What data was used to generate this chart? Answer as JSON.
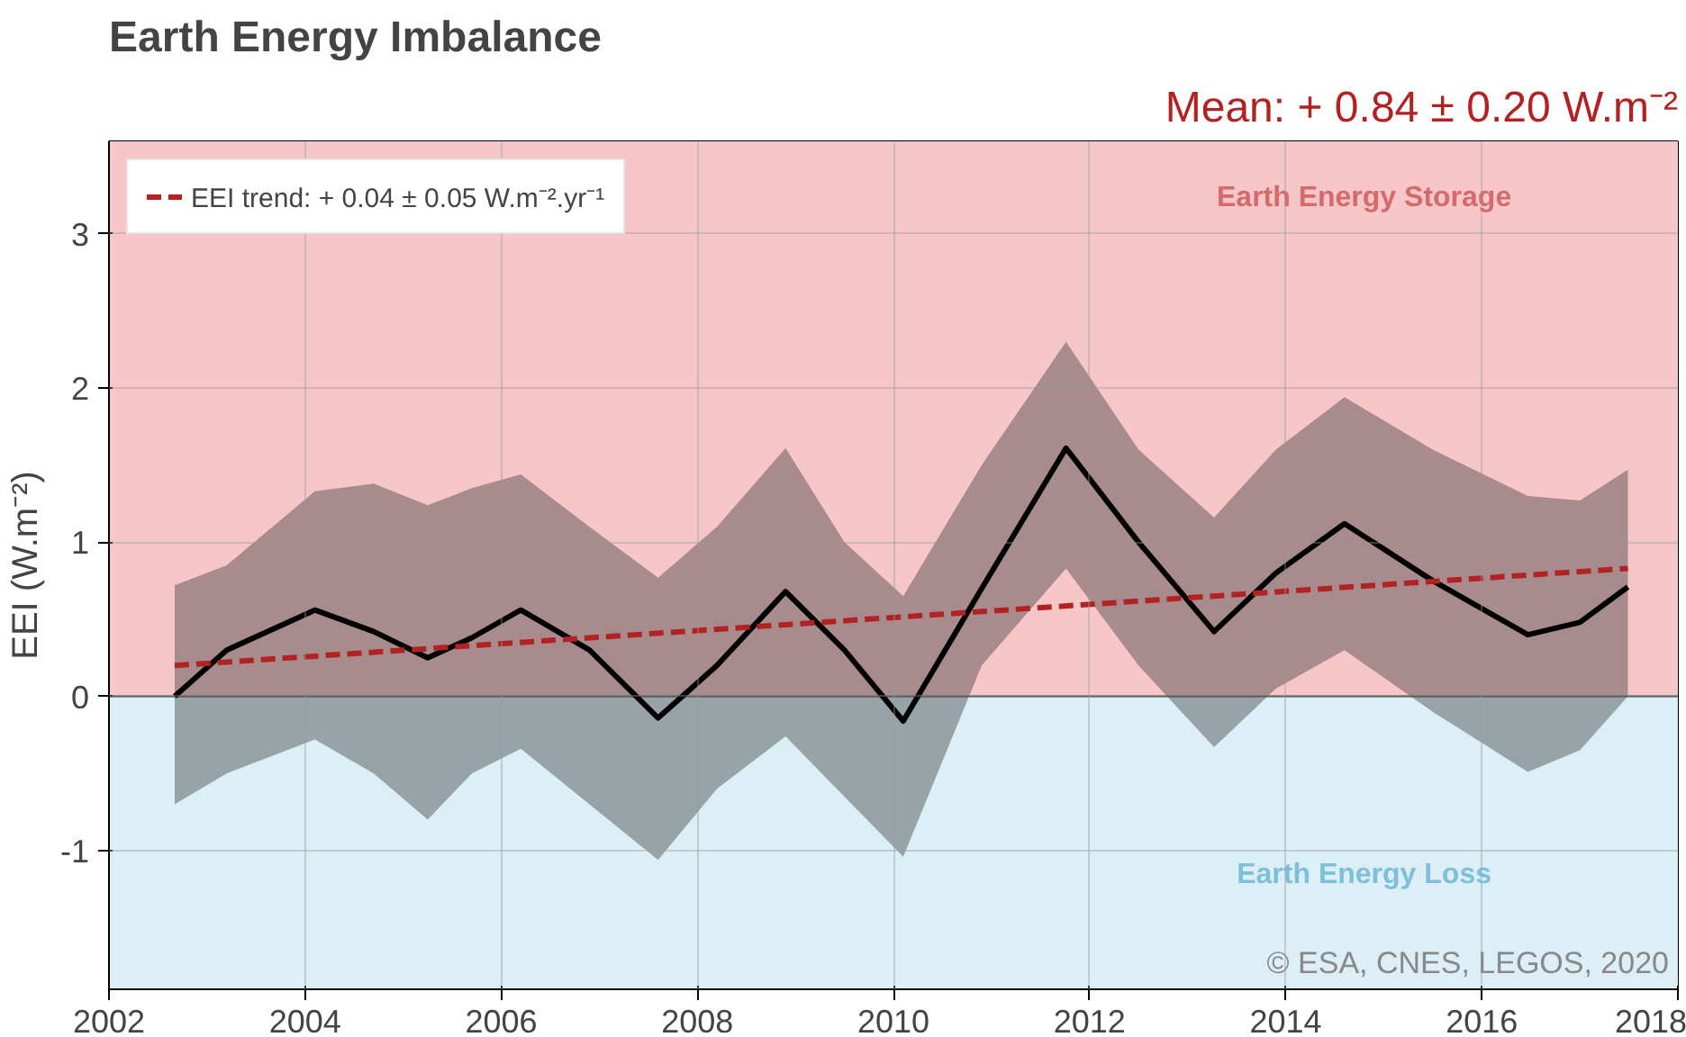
{
  "chart_data": {
    "type": "line",
    "title": "Earth Energy Imbalance",
    "subtitle": "Mean: + 0.84 ± 0.20 W.m⁻²",
    "ylabel": "EEI (W.m⁻²)",
    "xlim": [
      2002,
      2018
    ],
    "xticks": [
      2002,
      2004,
      2006,
      2008,
      2010,
      2012,
      2014,
      2016,
      2018
    ],
    "ylim": [
      -1.9,
      3.6
    ],
    "yticks": [
      -1,
      0,
      1,
      2,
      3
    ],
    "grid": true,
    "legend": "top left",
    "series": [
      {
        "color": "#000000",
        "x": [
          2002.67,
          2003.2,
          2004.1,
          2004.7,
          2005.25,
          2005.7,
          2006.2,
          2006.9,
          2007.6,
          2008.2,
          2008.9,
          2009.5,
          2010.1,
          2010.9,
          2011.76,
          2012.5,
          2013.27,
          2013.9,
          2014.6,
          2015.5,
          2016.47,
          2017.0,
          2017.49
        ],
        "values": [
          0.0,
          0.3,
          0.56,
          0.42,
          0.25,
          0.38,
          0.56,
          0.3,
          -0.14,
          0.2,
          0.68,
          0.3,
          -0.16,
          0.7,
          1.61,
          1.0,
          0.42,
          0.8,
          1.12,
          0.75,
          0.4,
          0.48,
          0.71
        ],
        "lower": [
          -0.7,
          -0.5,
          -0.28,
          -0.5,
          -0.8,
          -0.5,
          -0.34,
          -0.7,
          -1.06,
          -0.6,
          -0.26,
          -0.65,
          -1.04,
          0.2,
          0.83,
          0.2,
          -0.33,
          0.05,
          0.3,
          -0.1,
          -0.49,
          -0.35,
          0.0
        ],
        "upper": [
          0.72,
          0.85,
          1.33,
          1.38,
          1.24,
          1.35,
          1.44,
          1.1,
          0.77,
          1.1,
          1.61,
          1.0,
          0.65,
          1.5,
          2.3,
          1.6,
          1.16,
          1.6,
          1.94,
          1.6,
          1.3,
          1.27,
          1.47
        ]
      },
      {
        "name": "EEI trend: + 0.04 ± 0.05 W.m⁻².yr⁻¹",
        "color": "#b22222",
        "line_style": "dashed",
        "x": [
          2002.67,
          2017.49
        ],
        "values": [
          0.2,
          0.83
        ]
      }
    ],
    "bands": [
      {
        "axis": "y",
        "from": 0,
        "to": 3.6,
        "label": "Earth Energy Storage",
        "color": "#f7c6c8"
      },
      {
        "axis": "y",
        "from": -1.9,
        "to": 0,
        "label": "Earth Energy Loss",
        "color": "#dceef6"
      }
    ],
    "annotations": [
      "© ESA, CNES, LEGOS, 2020"
    ]
  }
}
